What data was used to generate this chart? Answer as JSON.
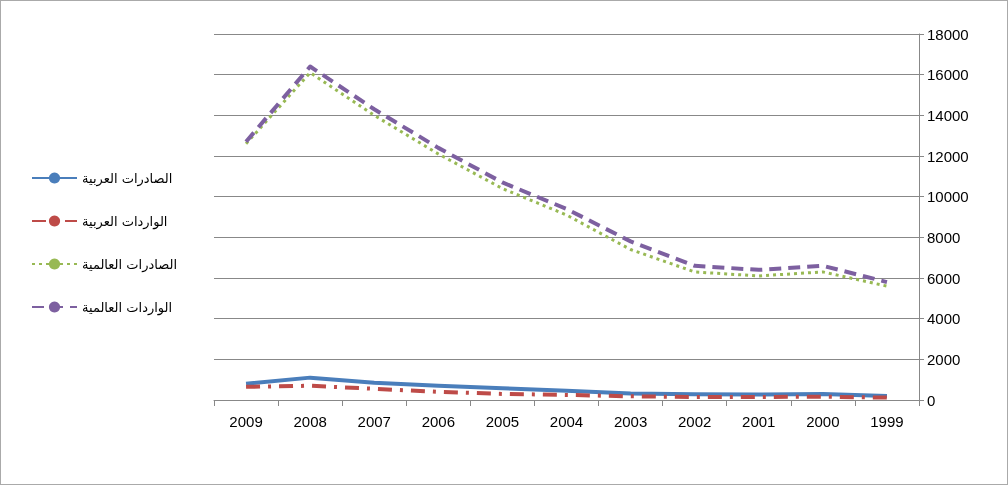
{
  "chart_data": {
    "type": "line",
    "categories": [
      "2009",
      "2008",
      "2007",
      "2006",
      "2005",
      "2004",
      "2003",
      "2002",
      "2001",
      "2000",
      "1999"
    ],
    "series": [
      {
        "name": "الصادرات العربية",
        "color": "#4a7ebb",
        "line_style": "solid",
        "values": [
          800,
          1100,
          850,
          700,
          580,
          450,
          320,
          280,
          270,
          290,
          200
        ]
      },
      {
        "name": "الواردات العربية",
        "color": "#be4b48",
        "line_style": "dashdot",
        "values": [
          650,
          700,
          550,
          400,
          300,
          250,
          180,
          150,
          150,
          160,
          120
        ]
      },
      {
        "name": "الصادرات العالمية",
        "color": "#98b954",
        "line_style": "dotted",
        "values": [
          12600,
          16100,
          14000,
          12100,
          10400,
          9100,
          7400,
          6300,
          6100,
          6300,
          5600
        ]
      },
      {
        "name": "الواردات العالمية",
        "color": "#7d60a0",
        "line_style": "dashed",
        "values": [
          12700,
          16400,
          14300,
          12400,
          10700,
          9400,
          7800,
          6600,
          6400,
          6600,
          5800
        ]
      }
    ],
    "ylim": [
      0,
      18000
    ],
    "yticks": [
      0,
      2000,
      4000,
      6000,
      8000,
      10000,
      12000,
      14000,
      16000,
      18000
    ],
    "grid": "y",
    "legend": "left",
    "marker": "none"
  }
}
